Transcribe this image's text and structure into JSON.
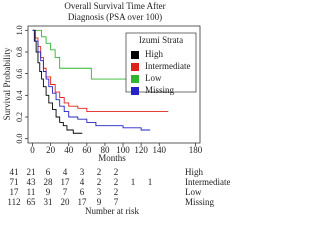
{
  "chart_data": {
    "type": "step",
    "title": "Overall Survival Time After",
    "subtitle": "Diagnosis (PSA over 100)",
    "x_label": "Months",
    "y_label": "Survival Probability",
    "legend_title": "Izumi Strata",
    "xlim": [
      -5,
      185
    ],
    "ylim": [
      -0.04,
      1.04
    ],
    "xticks": [
      0,
      20,
      40,
      60,
      80,
      100,
      120,
      140,
      180
    ],
    "yticks": [
      {
        "value": 0,
        "label": "0.0"
      },
      {
        "value": 0.2,
        "label": "0.2"
      },
      {
        "value": 0.4,
        "label": "0.4"
      },
      {
        "value": 0.6,
        "label": "0.6"
      },
      {
        "value": 0.8,
        "label": "0.8"
      },
      {
        "value": 1,
        "label": "1.0"
      }
    ],
    "series": [
      {
        "name": "High",
        "color": "#000000",
        "x": [
          0,
          2,
          4,
          6,
          8,
          10,
          12,
          15,
          18,
          22,
          26,
          30,
          34,
          38,
          45,
          55
        ],
        "values": [
          1,
          0.9,
          0.8,
          0.7,
          0.62,
          0.55,
          0.48,
          0.4,
          0.33,
          0.27,
          0.2,
          0.15,
          0.12,
          0.08,
          0.05,
          0.05
        ]
      },
      {
        "name": "Intermediate",
        "color": "#e0201b",
        "x": [
          0,
          3,
          6,
          9,
          12,
          15,
          20,
          25,
          30,
          35,
          40,
          50,
          60,
          90,
          150
        ],
        "values": [
          1,
          0.93,
          0.85,
          0.75,
          0.65,
          0.57,
          0.5,
          0.43,
          0.38,
          0.33,
          0.3,
          0.28,
          0.25,
          0.25,
          0.25
        ]
      },
      {
        "name": "Low",
        "color": "#2fb52f",
        "x": [
          0,
          10,
          15,
          20,
          25,
          30,
          65,
          105,
          145
        ],
        "values": [
          1,
          0.94,
          0.88,
          0.82,
          0.75,
          0.65,
          0.55,
          0.45,
          0.45
        ]
      },
      {
        "name": "Missing",
        "color": "#2323c8",
        "x": [
          0,
          3,
          6,
          9,
          12,
          15,
          18,
          22,
          26,
          30,
          35,
          40,
          50,
          60,
          70,
          100,
          120,
          130
        ],
        "values": [
          1,
          0.9,
          0.8,
          0.72,
          0.62,
          0.55,
          0.48,
          0.42,
          0.36,
          0.3,
          0.25,
          0.2,
          0.18,
          0.15,
          0.12,
          0.1,
          0.08,
          0.08
        ]
      }
    ],
    "risk_table": {
      "title": "Number at risk",
      "rows": [
        {
          "label": "High",
          "counts": [
            41,
            21,
            6,
            4,
            3,
            2,
            2
          ]
        },
        {
          "label": "Intermediate",
          "counts": [
            71,
            43,
            28,
            17,
            4,
            2,
            2,
            1,
            1
          ]
        },
        {
          "label": "Low",
          "counts": [
            17,
            11,
            9,
            7,
            6,
            3,
            2
          ]
        },
        {
          "label": "Missing",
          "counts": [
            112,
            65,
            31,
            20,
            17,
            9,
            7
          ]
        }
      ]
    }
  }
}
